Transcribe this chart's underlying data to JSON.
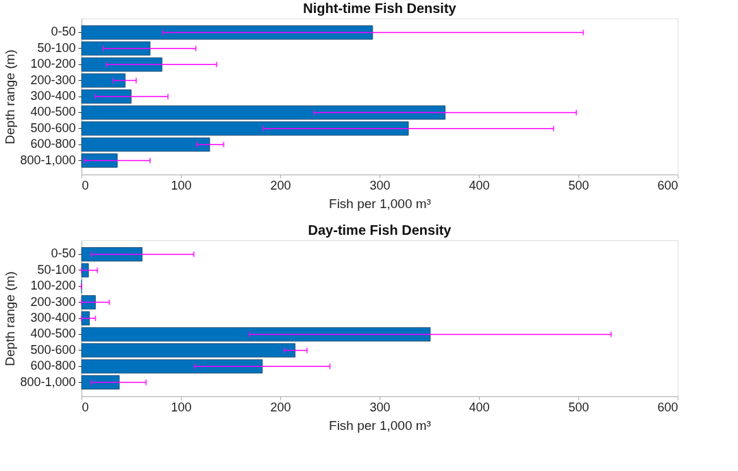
{
  "chart_data": [
    {
      "type": "bar",
      "orientation": "horizontal",
      "title": "Night-time Fish Density",
      "xlabel": "Fish per 1,000 m³",
      "ylabel": "Depth range (m)",
      "categories": [
        "0-50",
        "50-100",
        "100-200",
        "200-300",
        "300-400",
        "400-500",
        "500-600",
        "600-800",
        "800-1,000"
      ],
      "series": [
        {
          "color": "#0072bd",
          "values": [
            293,
            69,
            81,
            44,
            50,
            366,
            329,
            129,
            36
          ],
          "errors": [
            [
              82,
              505
            ],
            [
              22,
              115
            ],
            [
              25,
              136
            ],
            [
              32,
              55
            ],
            [
              14,
              87
            ],
            [
              234,
              498
            ],
            [
              183,
              475
            ],
            [
              116,
              143
            ],
            [
              3,
              69
            ]
          ]
        }
      ],
      "xlim": [
        0,
        600
      ],
      "xticks": [
        0,
        100,
        200,
        300,
        400,
        500,
        600
      ],
      "grid": false
    },
    {
      "type": "bar",
      "orientation": "horizontal",
      "title": "Day-time Fish Density",
      "xlabel": "Fish per 1,000 m³",
      "ylabel": "Depth range (m)",
      "categories": [
        "0-50",
        "50-100",
        "100-200",
        "200-300",
        "300-400",
        "400-500",
        "500-600",
        "600-800",
        "800-1,000"
      ],
      "series": [
        {
          "color": "#0072bd",
          "values": [
            61,
            7,
            0,
            14,
            8,
            351,
            215,
            182,
            38
          ],
          "errors": [
            [
              10,
              113
            ],
            [
              0,
              16
            ],
            [
              0,
              0
            ],
            [
              0,
              28
            ],
            [
              0,
              14
            ],
            [
              169,
              533
            ],
            [
              204,
              227
            ],
            [
              114,
              250
            ],
            [
              10,
              65
            ]
          ]
        }
      ],
      "xlim": [
        0,
        600
      ],
      "xticks": [
        0,
        100,
        200,
        300,
        400,
        500,
        600
      ],
      "grid": false
    }
  ]
}
